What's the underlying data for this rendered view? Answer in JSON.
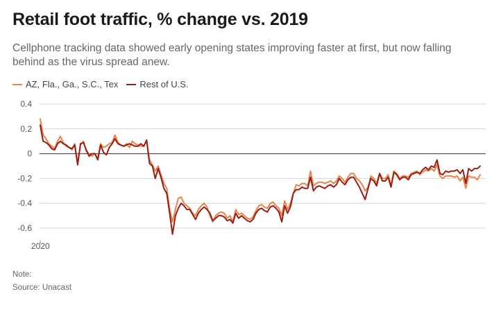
{
  "title": "Retail foot traffic, % change vs. 2019",
  "subtitle": "Cellphone tracking data showed early opening states improving faster at first, but now falling behind as the virus spread anew.",
  "note": "Note:",
  "source": "Source: Unacast",
  "colors": {
    "series_a": "#e8834a",
    "series_b": "#9b1c10",
    "grid": "#d6d6d6",
    "zero": "#555555"
  },
  "chart_data": {
    "type": "line",
    "x_start_label": "2020",
    "ylim": [
      -0.7,
      0.4
    ],
    "yticks": [
      0.4,
      0.2,
      0,
      -0.2,
      -0.4,
      -0.6
    ],
    "ytick_labels": [
      "0.4",
      "0.2",
      "0",
      "-0.2",
      "-0.4",
      "-0.6"
    ],
    "grid": true,
    "legend_position": "top-left",
    "series": [
      {
        "name": "AZ, Fla., Ga., S.C., Tex",
        "values": [
          0.28,
          0.15,
          0.12,
          0.08,
          0.06,
          0.04,
          0.1,
          0.14,
          0.09,
          0.06,
          0.05,
          0.03,
          0.08,
          -0.08,
          0.07,
          0.1,
          0.02,
          0.0,
          -0.02,
          0.0,
          -0.04,
          0.08,
          0.05,
          0.06,
          0.08,
          0.09,
          0.15,
          0.09,
          0.07,
          0.06,
          0.08,
          0.05,
          0.1,
          0.08,
          0.07,
          0.06,
          0.06,
          0.1,
          -0.05,
          -0.09,
          -0.14,
          -0.1,
          -0.17,
          -0.24,
          -0.28,
          -0.45,
          -0.55,
          -0.45,
          -0.36,
          -0.35,
          -0.4,
          -0.42,
          -0.44,
          -0.48,
          -0.5,
          -0.45,
          -0.42,
          -0.4,
          -0.43,
          -0.5,
          -0.55,
          -0.5,
          -0.48,
          -0.47,
          -0.48,
          -0.52,
          -0.5,
          -0.55,
          -0.45,
          -0.49,
          -0.48,
          -0.5,
          -0.52,
          -0.53,
          -0.51,
          -0.46,
          -0.42,
          -0.41,
          -0.43,
          -0.44,
          -0.4,
          -0.39,
          -0.42,
          -0.44,
          -0.5,
          -0.38,
          -0.45,
          -0.4,
          -0.32,
          -0.25,
          -0.26,
          -0.24,
          -0.24,
          -0.26,
          -0.14,
          -0.26,
          -0.24,
          -0.23,
          -0.23,
          -0.24,
          -0.23,
          -0.22,
          -0.24,
          -0.22,
          -0.18,
          -0.2,
          -0.23,
          -0.19,
          -0.16,
          -0.16,
          -0.2,
          -0.22,
          -0.25,
          -0.3,
          -0.27,
          -0.18,
          -0.2,
          -0.24,
          -0.16,
          -0.2,
          -0.2,
          -0.17,
          -0.26,
          -0.14,
          -0.16,
          -0.2,
          -0.18,
          -0.18,
          -0.19,
          -0.16,
          -0.15,
          -0.14,
          -0.17,
          -0.15,
          -0.13,
          -0.14,
          -0.12,
          -0.14,
          -0.09,
          -0.18,
          -0.2,
          -0.18,
          -0.18,
          -0.18,
          -0.19,
          -0.18,
          -0.22,
          -0.19,
          -0.28,
          -0.18,
          -0.19,
          -0.19,
          -0.21,
          -0.17
        ]
      },
      {
        "name": "Rest of U.S.",
        "values": [
          0.23,
          0.1,
          0.09,
          0.07,
          0.04,
          0.03,
          0.08,
          0.1,
          0.08,
          0.07,
          0.05,
          0.04,
          0.07,
          -0.09,
          0.08,
          0.09,
          0.03,
          -0.02,
          0.0,
          0.0,
          -0.05,
          0.07,
          0.01,
          -0.01,
          0.05,
          0.08,
          0.12,
          0.08,
          0.07,
          0.06,
          0.07,
          0.08,
          0.07,
          0.06,
          0.06,
          0.08,
          0.06,
          0.11,
          -0.08,
          -0.1,
          -0.2,
          -0.12,
          -0.19,
          -0.28,
          -0.32,
          -0.48,
          -0.65,
          -0.5,
          -0.44,
          -0.4,
          -0.42,
          -0.45,
          -0.45,
          -0.49,
          -0.53,
          -0.48,
          -0.45,
          -0.43,
          -0.45,
          -0.48,
          -0.54,
          -0.52,
          -0.5,
          -0.5,
          -0.51,
          -0.54,
          -0.53,
          -0.56,
          -0.48,
          -0.52,
          -0.5,
          -0.52,
          -0.54,
          -0.55,
          -0.53,
          -0.48,
          -0.45,
          -0.44,
          -0.46,
          -0.47,
          -0.43,
          -0.42,
          -0.44,
          -0.47,
          -0.55,
          -0.42,
          -0.48,
          -0.43,
          -0.32,
          -0.29,
          -0.29,
          -0.27,
          -0.28,
          -0.28,
          -0.19,
          -0.3,
          -0.27,
          -0.26,
          -0.27,
          -0.28,
          -0.26,
          -0.25,
          -0.27,
          -0.25,
          -0.2,
          -0.23,
          -0.25,
          -0.21,
          -0.19,
          -0.19,
          -0.23,
          -0.27,
          -0.32,
          -0.37,
          -0.28,
          -0.2,
          -0.22,
          -0.26,
          -0.16,
          -0.22,
          -0.22,
          -0.19,
          -0.27,
          -0.15,
          -0.17,
          -0.21,
          -0.19,
          -0.19,
          -0.21,
          -0.17,
          -0.16,
          -0.15,
          -0.16,
          -0.13,
          -0.11,
          -0.13,
          -0.1,
          -0.11,
          -0.05,
          -0.16,
          -0.17,
          -0.14,
          -0.15,
          -0.14,
          -0.14,
          -0.13,
          -0.16,
          -0.13,
          -0.24,
          -0.12,
          -0.14,
          -0.12,
          -0.12,
          -0.1
        ]
      }
    ]
  }
}
